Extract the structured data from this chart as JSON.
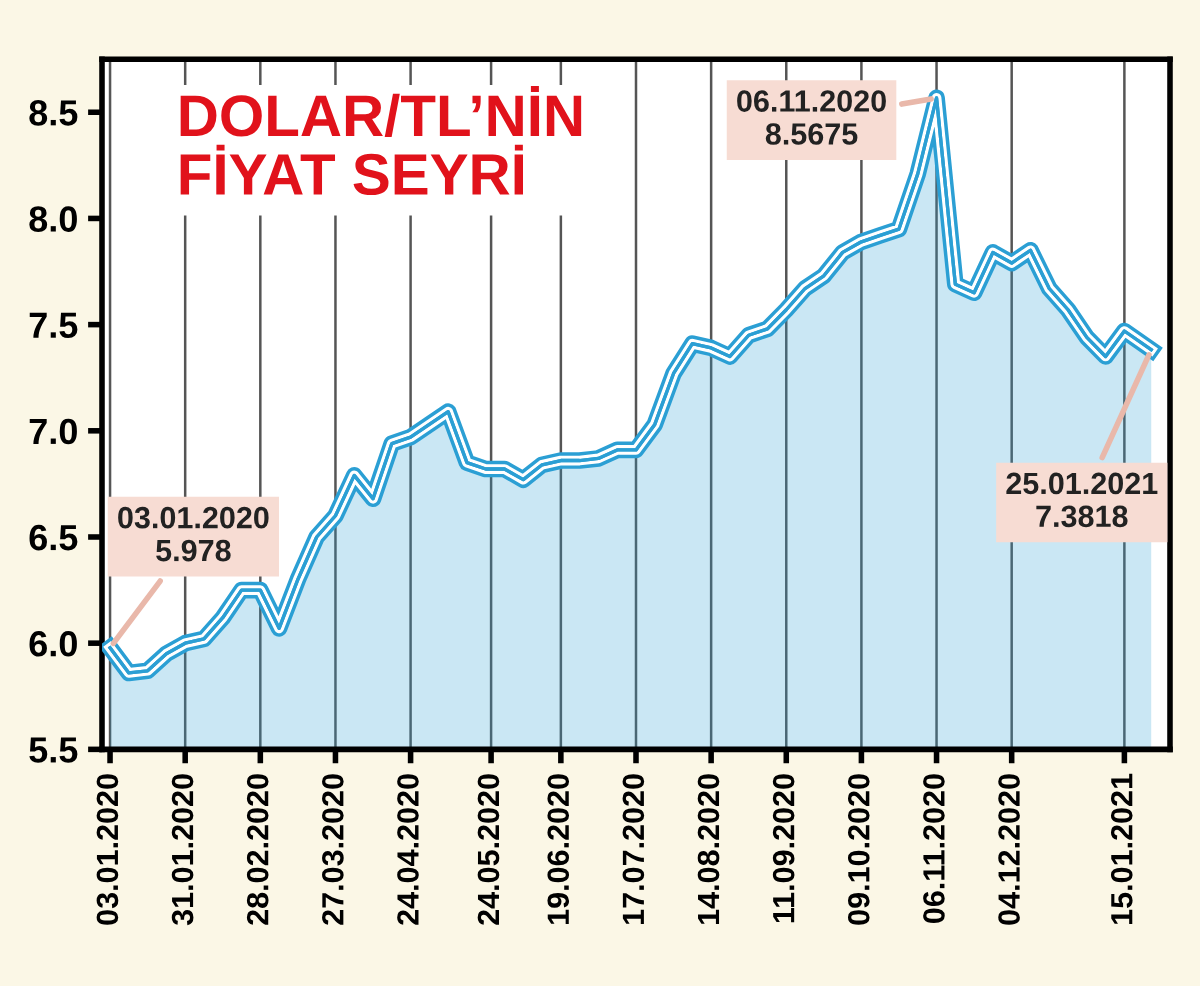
{
  "chart_data": {
    "type": "area",
    "title": "DOLAR/TL’NİN\nFİYAT SEYRİ",
    "x": [
      "2020-01-03",
      "2020-01-10",
      "2020-01-17",
      "2020-01-24",
      "2020-01-31",
      "2020-02-07",
      "2020-02-14",
      "2020-02-21",
      "2020-02-28",
      "2020-03-06",
      "2020-03-13",
      "2020-03-20",
      "2020-03-27",
      "2020-04-03",
      "2020-04-10",
      "2020-04-17",
      "2020-04-24",
      "2020-05-01",
      "2020-05-08",
      "2020-05-15",
      "2020-05-22",
      "2020-05-29",
      "2020-06-05",
      "2020-06-12",
      "2020-06-19",
      "2020-06-26",
      "2020-07-03",
      "2020-07-10",
      "2020-07-17",
      "2020-07-24",
      "2020-07-31",
      "2020-08-07",
      "2020-08-14",
      "2020-08-21",
      "2020-08-28",
      "2020-09-04",
      "2020-09-11",
      "2020-09-18",
      "2020-09-25",
      "2020-10-02",
      "2020-10-09",
      "2020-10-16",
      "2020-10-23",
      "2020-10-30",
      "2020-11-06",
      "2020-11-13",
      "2020-11-20",
      "2020-11-27",
      "2020-12-04",
      "2020-12-11",
      "2020-12-18",
      "2020-12-25",
      "2021-01-01",
      "2021-01-08",
      "2021-01-15",
      "2021-01-25"
    ],
    "series": [
      {
        "color": "#2b9fd4",
        "values": [
          5.978,
          5.86,
          5.87,
          5.95,
          6.0,
          6.02,
          6.12,
          6.25,
          6.25,
          6.07,
          6.3,
          6.5,
          6.6,
          6.79,
          6.68,
          6.94,
          6.97,
          7.03,
          7.09,
          6.85,
          6.82,
          6.82,
          6.77,
          6.84,
          6.86,
          6.86,
          6.87,
          6.91,
          6.91,
          7.03,
          7.27,
          7.41,
          7.39,
          7.35,
          7.45,
          7.48,
          7.57,
          7.67,
          7.73,
          7.84,
          7.89,
          7.92,
          7.95,
          8.21,
          8.5675,
          7.69,
          7.65,
          7.84,
          7.79,
          7.85,
          7.67,
          7.57,
          7.44,
          7.35,
          7.47,
          7.3818
        ]
      }
    ],
    "xlim": [
      "2019-12-31",
      "2021-02-01"
    ],
    "xticks": [
      {
        "value": "2020-01-03",
        "label": "03.01.2020"
      },
      {
        "value": "2020-01-31",
        "label": "31.01.2020"
      },
      {
        "value": "2020-02-28",
        "label": "28.02.2020"
      },
      {
        "value": "2020-03-27",
        "label": "27.03.2020"
      },
      {
        "value": "2020-04-24",
        "label": "24.04.2020"
      },
      {
        "value": "2020-05-24",
        "label": "24.05.2020"
      },
      {
        "value": "2020-06-19",
        "label": "19.06.2020"
      },
      {
        "value": "2020-07-17",
        "label": "17.07.2020"
      },
      {
        "value": "2020-08-14",
        "label": "14.08.2020"
      },
      {
        "value": "2020-09-11",
        "label": "11.09.2020"
      },
      {
        "value": "2020-10-09",
        "label": "09.10.2020"
      },
      {
        "value": "2020-11-06",
        "label": "06.11.2020"
      },
      {
        "value": "2020-12-04",
        "label": "04.12.2020"
      },
      {
        "value": "2021-01-15",
        "label": "15.01.2021"
      }
    ],
    "ylim": [
      5.5,
      8.75
    ],
    "yticks": [
      5.5,
      {
        "value": 6,
        "label": "6.0"
      },
      6.5,
      {
        "value": 7,
        "label": "7.0"
      },
      7.5,
      {
        "value": 8,
        "label": "8.0"
      },
      8.5
    ],
    "grid": "x",
    "annotations": [
      {
        "text": "03.01.2020\n5.978",
        "x": "2020-01-03",
        "y": 5.978
      },
      {
        "text": "06.11.2020\n8.5675",
        "x": "2020-11-06",
        "y": 8.5675
      },
      {
        "text": "25.01.2021\n7.3818",
        "x": "2021-01-25",
        "y": 7.3818
      }
    ]
  }
}
